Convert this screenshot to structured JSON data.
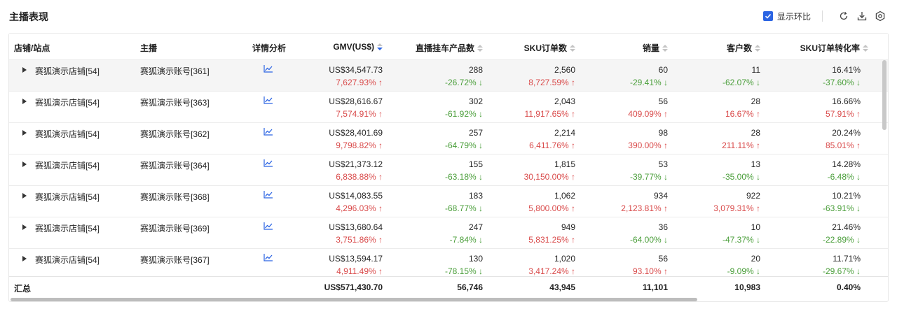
{
  "title": "主播表现",
  "toolbar": {
    "compare_label": "显示环比",
    "compare_checked": true,
    "icons": [
      "refresh-icon",
      "download-icon",
      "settings-icon"
    ]
  },
  "colors": {
    "accent": "#2b64e3",
    "up": "#d94a4a",
    "down": "#4a9e3a"
  },
  "columns": [
    "店铺/站点",
    "主播",
    "详情分析",
    "GMV(US$)",
    "直播挂车产品数",
    "SKU订单数",
    "销量",
    "客户数",
    "SKU订单转化率"
  ],
  "sort": {
    "column": "GMV(US$)",
    "direction": "desc"
  },
  "rows": [
    {
      "store": "赛狐演示店铺[54]",
      "anchor": "赛狐演示账号[361]",
      "gmv": "US$34,547.73",
      "gmv_chg": "7,627.93% ↑",
      "products": "288",
      "products_chg": "-26.72% ↓",
      "sku_orders": "2,560",
      "sku_orders_chg": "8,727.59% ↑",
      "sales": "60",
      "sales_chg": "-29.41% ↓",
      "customers": "11",
      "customers_chg": "-62.07% ↓",
      "conversion": "16.41%",
      "conversion_chg": "-37.60% ↓"
    },
    {
      "store": "赛狐演示店铺[54]",
      "anchor": "赛狐演示账号[363]",
      "gmv": "US$28,616.67",
      "gmv_chg": "7,574.91% ↑",
      "products": "302",
      "products_chg": "-61.92% ↓",
      "sku_orders": "2,043",
      "sku_orders_chg": "11,917.65% ↑",
      "sales": "56",
      "sales_chg": "409.09% ↑",
      "customers": "28",
      "customers_chg": "16.67% ↑",
      "conversion": "16.66%",
      "conversion_chg": "57.91% ↑"
    },
    {
      "store": "赛狐演示店铺[54]",
      "anchor": "赛狐演示账号[362]",
      "gmv": "US$28,401.69",
      "gmv_chg": "9,798.82% ↑",
      "products": "257",
      "products_chg": "-64.79% ↓",
      "sku_orders": "2,214",
      "sku_orders_chg": "6,411.76% ↑",
      "sales": "98",
      "sales_chg": "390.00% ↑",
      "customers": "28",
      "customers_chg": "211.11% ↑",
      "conversion": "20.24%",
      "conversion_chg": "85.01% ↑"
    },
    {
      "store": "赛狐演示店铺[54]",
      "anchor": "赛狐演示账号[364]",
      "gmv": "US$21,373.12",
      "gmv_chg": "6,838.88% ↑",
      "products": "155",
      "products_chg": "-63.18% ↓",
      "sku_orders": "1,815",
      "sku_orders_chg": "30,150.00% ↑",
      "sales": "53",
      "sales_chg": "-39.77% ↓",
      "customers": "13",
      "customers_chg": "-35.00% ↓",
      "conversion": "14.28%",
      "conversion_chg": "-6.48% ↓"
    },
    {
      "store": "赛狐演示店铺[54]",
      "anchor": "赛狐演示账号[368]",
      "gmv": "US$14,083.55",
      "gmv_chg": "4,296.03% ↑",
      "products": "183",
      "products_chg": "-68.77% ↓",
      "sku_orders": "1,062",
      "sku_orders_chg": "5,800.00% ↑",
      "sales": "934",
      "sales_chg": "2,123.81% ↑",
      "customers": "922",
      "customers_chg": "3,079.31% ↑",
      "conversion": "10.21%",
      "conversion_chg": "-63.91% ↓"
    },
    {
      "store": "赛狐演示店铺[54]",
      "anchor": "赛狐演示账号[369]",
      "gmv": "US$13,680.64",
      "gmv_chg": "3,751.86% ↑",
      "products": "247",
      "products_chg": "-7.84% ↓",
      "sku_orders": "949",
      "sku_orders_chg": "5,831.25% ↑",
      "sales": "36",
      "sales_chg": "-64.00% ↓",
      "customers": "10",
      "customers_chg": "-47.37% ↓",
      "conversion": "21.46%",
      "conversion_chg": "-22.89% ↓"
    },
    {
      "store": "赛狐演示店铺[54]",
      "anchor": "赛狐演示账号[367]",
      "gmv": "US$13,594.17",
      "gmv_chg": "4,911.49% ↑",
      "products": "130",
      "products_chg": "-78.15% ↓",
      "sku_orders": "1,020",
      "sku_orders_chg": "3,417.24% ↑",
      "sales": "56",
      "sales_chg": "93.10% ↑",
      "customers": "20",
      "customers_chg": "-9.09% ↓",
      "conversion": "11.71%",
      "conversion_chg": "-29.67% ↓"
    }
  ],
  "summary": {
    "label": "汇总",
    "gmv": "US$571,430.70",
    "products": "56,746",
    "sku_orders": "43,945",
    "sales": "11,101",
    "customers": "10,983",
    "conversion": "0.40%"
  }
}
